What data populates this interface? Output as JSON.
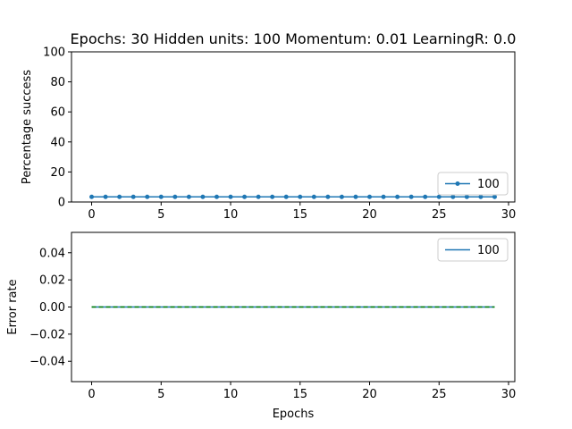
{
  "chart_data": [
    {
      "type": "line",
      "title": "Epochs: 30 Hidden units: 100 Momentum: 0.01 LearningR: 0.0",
      "xlabel": "",
      "ylabel": "Percentage success",
      "xlim": [
        -1.45,
        30.45
      ],
      "ylim": [
        0,
        100
      ],
      "xticks": [
        0,
        5,
        10,
        15,
        20,
        25,
        30
      ],
      "yticks": [
        0,
        20,
        40,
        60,
        80,
        100
      ],
      "grid": false,
      "legend": {
        "position": "lower-right",
        "entries": [
          "100"
        ]
      },
      "series": [
        {
          "name": "100",
          "color": "#1f77b4",
          "marker": "circle",
          "x": [
            0,
            1,
            2,
            3,
            4,
            5,
            6,
            7,
            8,
            9,
            10,
            11,
            12,
            13,
            14,
            15,
            16,
            17,
            18,
            19,
            20,
            21,
            22,
            23,
            24,
            25,
            26,
            27,
            28,
            29
          ],
          "y": [
            3.4,
            3.4,
            3.4,
            3.4,
            3.4,
            3.4,
            3.4,
            3.4,
            3.4,
            3.4,
            3.4,
            3.4,
            3.4,
            3.4,
            3.4,
            3.4,
            3.4,
            3.4,
            3.4,
            3.4,
            3.4,
            3.4,
            3.4,
            3.4,
            3.4,
            3.4,
            3.4,
            3.4,
            3.4,
            3.4
          ]
        }
      ]
    },
    {
      "type": "line",
      "title": "",
      "xlabel": "Epochs",
      "ylabel": "Error rate",
      "xlim": [
        -1.45,
        30.45
      ],
      "ylim": [
        -0.055,
        0.055
      ],
      "xticks": [
        0,
        5,
        10,
        15,
        20,
        25,
        30
      ],
      "yticks": [
        -0.04,
        -0.02,
        0.0,
        0.02,
        0.04
      ],
      "yticklabels": [
        "−0.04",
        "−0.02",
        "0.00",
        "0.02",
        "0.04"
      ],
      "grid": false,
      "legend": {
        "position": "upper-right",
        "entries": [
          "100"
        ]
      },
      "series": [
        {
          "name": "100",
          "color": "#1f77b4",
          "x": [
            0,
            1,
            2,
            3,
            4,
            5,
            6,
            7,
            8,
            9,
            10,
            11,
            12,
            13,
            14,
            15,
            16,
            17,
            18,
            19,
            20,
            21,
            22,
            23,
            24,
            25,
            26,
            27,
            28,
            29
          ],
          "y": [
            0,
            0,
            0,
            0,
            0,
            0,
            0,
            0,
            0,
            0,
            0,
            0,
            0,
            0,
            0,
            0,
            0,
            0,
            0,
            0,
            0,
            0,
            0,
            0,
            0,
            0,
            0,
            0,
            0,
            0
          ]
        },
        {
          "color": "#008000",
          "dashed": true,
          "x": [
            0,
            29
          ],
          "y": [
            0,
            0
          ]
        }
      ]
    }
  ]
}
